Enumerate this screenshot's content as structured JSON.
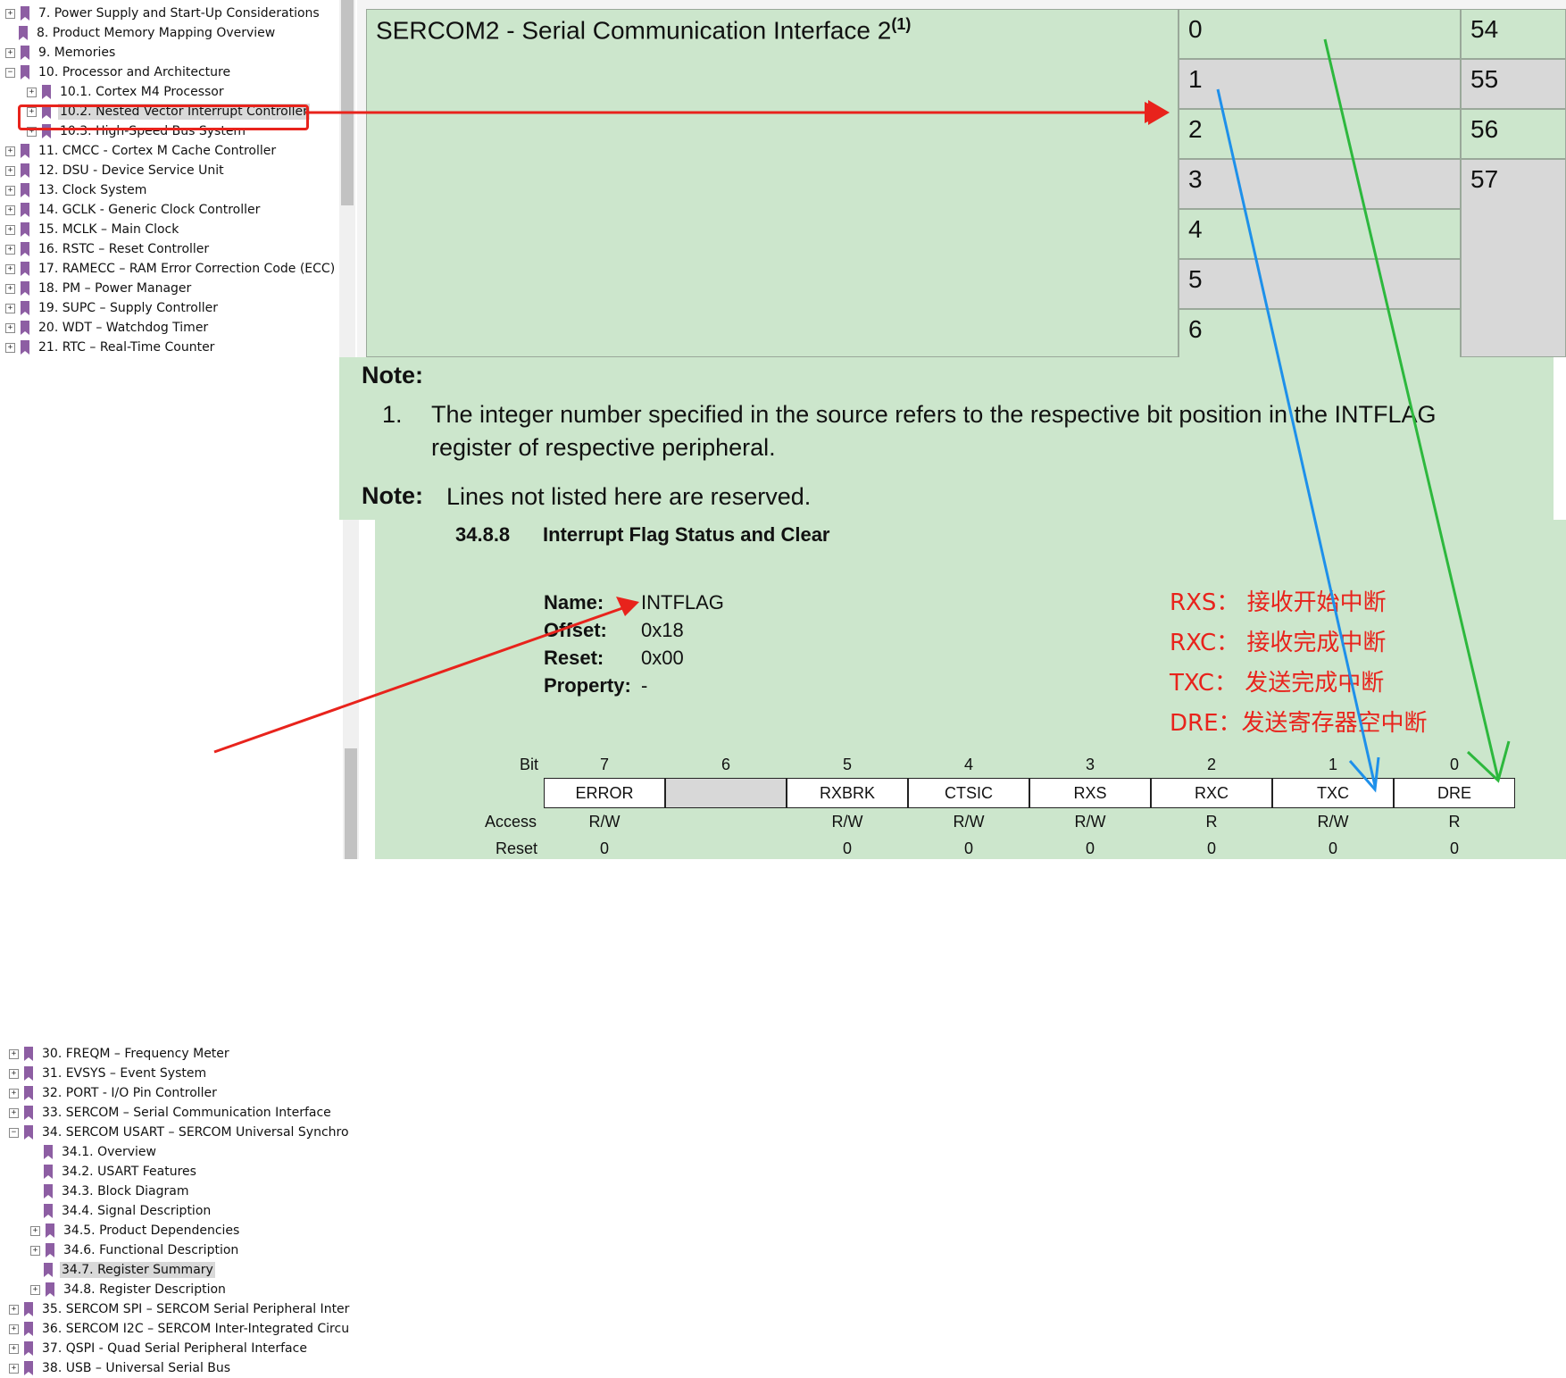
{
  "tree_top": {
    "items": [
      {
        "label": "7. Power Supply and Start-Up Considerations",
        "expander": "+"
      },
      {
        "label": "8. Product Memory Mapping Overview",
        "expander": ""
      },
      {
        "label": "9. Memories",
        "expander": "+"
      },
      {
        "label": "10. Processor and Architecture",
        "expander": "−"
      },
      {
        "label": "10.1. Cortex M4 Processor",
        "expander": "+"
      },
      {
        "label": "10.2. Nested Vector Interrupt Controller",
        "expander": "+",
        "selected": true
      },
      {
        "label": "10.3. High-Speed Bus System",
        "expander": "+"
      },
      {
        "label": "11. CMCC - Cortex M Cache Controller",
        "expander": "+"
      },
      {
        "label": "12. DSU - Device Service Unit",
        "expander": "+"
      },
      {
        "label": "13. Clock System",
        "expander": "+"
      },
      {
        "label": "14. GCLK - Generic Clock Controller",
        "expander": "+"
      },
      {
        "label": "15. MCLK – Main Clock",
        "expander": "+"
      },
      {
        "label": "16. RSTC – Reset Controller",
        "expander": "+"
      },
      {
        "label": "17. RAMECC – RAM Error Correction Code (ECC)",
        "expander": "+"
      },
      {
        "label": "18. PM – Power Manager",
        "expander": "+"
      },
      {
        "label": "19. SUPC – Supply Controller",
        "expander": "+"
      },
      {
        "label": "20. WDT – Watchdog Timer",
        "expander": "+"
      },
      {
        "label": "21. RTC – Real-Time Counter",
        "expander": "+"
      }
    ]
  },
  "tree_bottom": {
    "items": [
      {
        "label": "30. FREQM – Frequency Meter",
        "expander": "+"
      },
      {
        "label": "31. EVSYS – Event System",
        "expander": "+"
      },
      {
        "label": "32. PORT - I/O Pin Controller",
        "expander": "+"
      },
      {
        "label": "33. SERCOM – Serial Communication Interface",
        "expander": "+"
      },
      {
        "label": "34. SERCOM USART – SERCOM Universal Synchro",
        "expander": "−"
      },
      {
        "label": "34.1. Overview",
        "expander": ""
      },
      {
        "label": "34.2. USART Features",
        "expander": ""
      },
      {
        "label": "34.3. Block Diagram",
        "expander": ""
      },
      {
        "label": "34.4. Signal Description",
        "expander": ""
      },
      {
        "label": "34.5. Product Dependencies",
        "expander": "+"
      },
      {
        "label": "34.6. Functional Description",
        "expander": "+"
      },
      {
        "label": "34.7. Register Summary",
        "expander": "",
        "selected": true
      },
      {
        "label": "34.8. Register Description",
        "expander": "+"
      },
      {
        "label": "35. SERCOM SPI – SERCOM Serial Peripheral Inter",
        "expander": "+"
      },
      {
        "label": "36. SERCOM I2C – SERCOM Inter-Integrated Circu",
        "expander": "+"
      },
      {
        "label": "37. QSPI - Quad Serial Peripheral Interface",
        "expander": "+"
      },
      {
        "label": "38. USB – Universal Serial Bus",
        "expander": "+"
      }
    ]
  },
  "interrupt_table": {
    "module_name": "SERCOM2 - Serial Communication Interface 2",
    "module_footnote": "(1)",
    "sources": [
      "0",
      "1",
      "2",
      "3",
      "4",
      "5",
      "6"
    ],
    "lines": [
      "54",
      "55",
      "56",
      "57"
    ]
  },
  "notes": {
    "note1_title": "Note:",
    "note1_number": "1.",
    "note1_text_line1": "The integer number specified in the source refers to the respective bit position in the INTFLAG",
    "note1_text_line2": "register of respective peripheral.",
    "note2_title": "Note:",
    "note2_text": "Lines not listed here are reserved."
  },
  "register": {
    "section_number": "34.8.8",
    "section_title": "Interrupt Flag Status and Clear",
    "name_label": "Name:",
    "name_value": "INTFLAG",
    "offset_label": "Offset:",
    "offset_value": "0x18",
    "reset_label": "Reset:",
    "reset_value": "0x00",
    "property_label": "Property:",
    "property_value": "-",
    "row_labels": {
      "bit": "Bit",
      "access": "Access",
      "reset": "Reset"
    },
    "bits": [
      {
        "num": "7",
        "field": "ERROR",
        "access": "R/W",
        "reset": "0"
      },
      {
        "num": "6",
        "field": "",
        "access": "",
        "reset": ""
      },
      {
        "num": "5",
        "field": "RXBRK",
        "access": "R/W",
        "reset": "0"
      },
      {
        "num": "4",
        "field": "CTSIC",
        "access": "R/W",
        "reset": "0"
      },
      {
        "num": "3",
        "field": "RXS",
        "access": "R/W",
        "reset": "0"
      },
      {
        "num": "2",
        "field": "RXC",
        "access": "R",
        "reset": "0"
      },
      {
        "num": "1",
        "field": "TXC",
        "access": "R/W",
        "reset": "0"
      },
      {
        "num": "0",
        "field": "DRE",
        "access": "R",
        "reset": "0"
      }
    ]
  },
  "annotations": {
    "rxs": "RXS： 接收开始中断",
    "rxc": "RXC： 接收完成中断",
    "txc": "TXC： 发送完成中断",
    "dre": "DRE：发送寄存器空中断",
    "colors": {
      "red": "#e8231c",
      "blue": "#1e90ea",
      "green": "#2db83d",
      "table_green": "#cce6cc",
      "cell_gray": "#d8d8d8"
    }
  }
}
